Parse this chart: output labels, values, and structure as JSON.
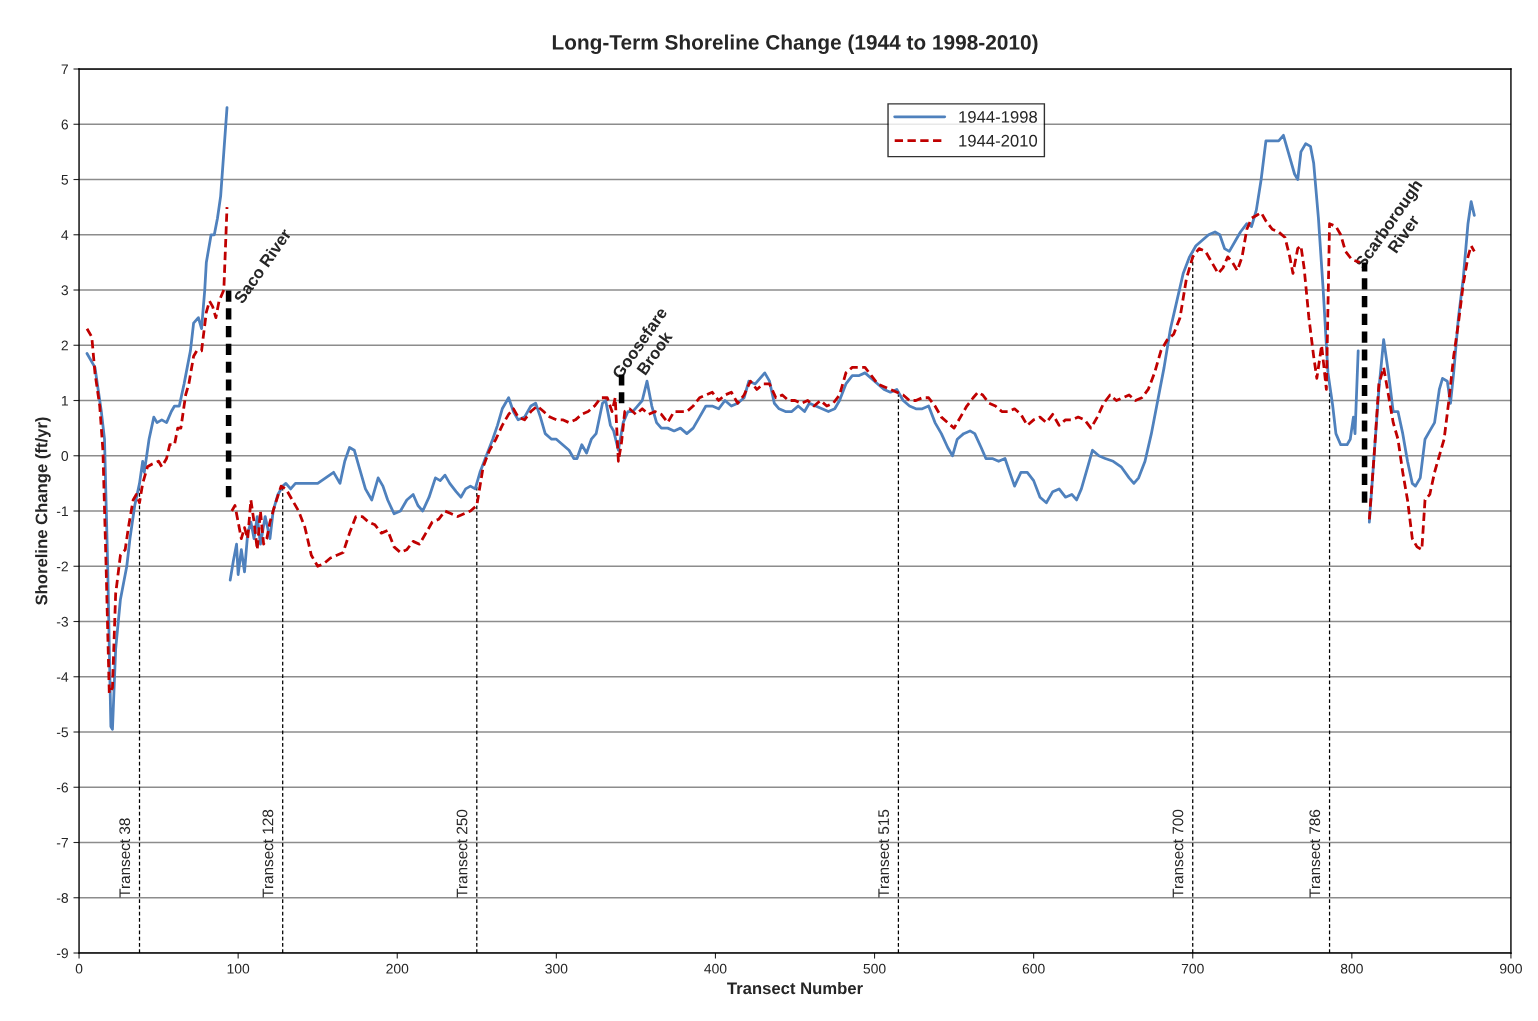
{
  "chart_data": {
    "type": "line",
    "title": "Long-Term Shoreline Change (1944 to 1998-2010)",
    "xlabel": "Transect Number",
    "ylabel": "Shoreline Change (ft/yr)",
    "xlim": [
      0,
      900
    ],
    "ylim": [
      -9,
      7
    ],
    "xticks": [
      0,
      100,
      200,
      300,
      400,
      500,
      600,
      700,
      800,
      900
    ],
    "yticks": [
      -9,
      -8,
      -7,
      -6,
      -5,
      -4,
      -3,
      -2,
      -1,
      0,
      1,
      2,
      3,
      4,
      5,
      6,
      7
    ],
    "grid": "y",
    "legend": "top right",
    "series": [
      {
        "name": "1944-1998",
        "color": "#4f81bd",
        "line_style": "solid",
        "x": [
          5,
          8,
          10,
          12,
          14,
          16,
          18,
          20,
          21,
          23,
          26,
          30,
          32,
          35,
          38,
          40,
          41,
          44,
          47,
          49,
          52,
          55,
          58,
          60,
          63,
          66,
          68,
          70,
          72,
          75,
          77,
          79,
          80,
          83,
          85,
          87,
          89,
          91,
          93,
          94,
          95,
          97,
          99,
          100,
          102,
          104,
          106,
          108,
          110,
          112,
          114,
          117,
          120,
          122,
          125,
          128,
          130,
          133,
          136,
          140,
          145,
          150,
          155,
          160,
          164,
          167,
          170,
          173,
          176,
          180,
          184,
          188,
          191,
          194,
          198,
          202,
          206,
          210,
          213,
          216,
          220,
          224,
          227,
          230,
          233,
          237,
          240,
          243,
          246,
          249,
          252,
          256,
          260,
          263,
          266,
          270,
          273,
          276,
          280,
          284,
          287,
          290,
          293,
          297,
          300,
          304,
          308,
          311,
          313,
          316,
          319,
          322,
          325,
          329,
          331,
          334,
          336,
          339,
          342,
          345,
          348,
          351,
          354,
          357,
          360,
          363,
          366,
          370,
          374,
          378,
          382,
          386,
          390,
          394,
          398,
          402,
          406,
          410,
          414,
          418,
          421,
          425,
          428,
          431,
          434,
          437,
          440,
          444,
          448,
          452,
          456,
          459,
          463,
          467,
          471,
          475,
          478,
          482,
          486,
          490,
          494,
          498,
          502,
          506,
          510,
          514,
          518,
          522,
          526,
          530,
          534,
          538,
          542,
          546,
          549,
          552,
          556,
          560,
          563,
          567,
          570,
          574,
          578,
          582,
          585,
          588,
          592,
          596,
          600,
          604,
          608,
          612,
          616,
          620,
          624,
          627,
          630,
          634,
          637,
          641,
          645,
          650,
          655,
          660,
          663,
          666,
          670,
          674,
          678,
          682,
          686,
          690,
          694,
          698,
          702,
          706,
          710,
          714,
          717,
          720,
          723,
          727,
          730,
          734,
          737,
          740,
          743,
          746,
          750,
          754,
          757,
          760,
          764,
          766,
          768,
          771,
          774,
          776,
          779,
          782,
          785,
          788,
          790,
          793,
          797,
          799,
          801,
          802,
          804,
          807,
          811,
          814,
          817,
          820,
          823,
          826,
          829,
          832,
          835,
          838,
          840,
          843,
          846,
          849,
          852,
          855,
          857,
          860,
          862,
          864,
          867,
          870,
          873,
          875,
          877
        ],
        "values": [
          1.85,
          1.7,
          1.6,
          1.2,
          0.8,
          0.3,
          -2,
          -4.9,
          -4.95,
          -3.5,
          -2.6,
          -2,
          -1.5,
          -0.9,
          -0.5,
          -0.1,
          -0.3,
          0.3,
          0.7,
          0.6,
          0.65,
          0.6,
          0.8,
          0.9,
          0.9,
          1.3,
          1.6,
          1.9,
          2.4,
          2.5,
          2.3,
          3,
          3.5,
          4,
          4,
          4.3,
          4.7,
          5.5,
          6.3,
          null,
          -2.25,
          -1.9,
          -1.6,
          -2.15,
          -1.7,
          -2.1,
          -1.4,
          -1.2,
          -1.5,
          -1.1,
          -1.6,
          -1.1,
          -1.5,
          -1.0,
          -0.7,
          -0.55,
          -0.5,
          -0.6,
          -0.5,
          -0.5,
          -0.5,
          -0.5,
          -0.4,
          -0.3,
          -0.5,
          -0.1,
          0.15,
          0.1,
          -0.2,
          -0.6,
          -0.8,
          -0.4,
          -0.55,
          -0.8,
          -1.05,
          -1.0,
          -0.8,
          -0.7,
          -0.9,
          -1.0,
          -0.75,
          -0.4,
          -0.45,
          -0.35,
          -0.5,
          -0.65,
          -0.75,
          -0.6,
          -0.55,
          -0.6,
          -0.3,
          0.0,
          0.3,
          0.55,
          0.85,
          1.05,
          0.8,
          0.65,
          0.7,
          0.9,
          0.95,
          0.7,
          0.4,
          0.3,
          0.3,
          0.2,
          0.1,
          -0.05,
          -0.05,
          0.2,
          0.05,
          0.3,
          0.4,
          0.95,
          1.0,
          0.55,
          0.45,
          0.1,
          0.6,
          0.8,
          0.8,
          0.9,
          1.0,
          1.35,
          0.9,
          0.6,
          0.5,
          0.5,
          0.45,
          0.5,
          0.4,
          0.5,
          0.7,
          0.9,
          0.9,
          0.85,
          1.0,
          0.9,
          0.95,
          1.05,
          1.35,
          1.3,
          1.4,
          1.5,
          1.35,
          0.95,
          0.85,
          0.8,
          0.8,
          0.9,
          0.8,
          0.95,
          0.9,
          0.85,
          0.8,
          0.85,
          1.0,
          1.3,
          1.45,
          1.45,
          1.5,
          1.4,
          1.3,
          1.2,
          1.15,
          1.2,
          1.0,
          0.9,
          0.85,
          0.85,
          0.9,
          0.6,
          0.4,
          0.15,
          0.0,
          0.3,
          0.4,
          0.45,
          0.4,
          0.15,
          -0.05,
          -0.05,
          -0.1,
          -0.05,
          -0.3,
          -0.55,
          -0.3,
          -0.3,
          -0.45,
          -0.75,
          -0.85,
          -0.65,
          -0.6,
          -0.75,
          -0.7,
          -0.8,
          -0.6,
          -0.2,
          0.1,
          0.0,
          -0.05,
          -0.1,
          -0.2,
          -0.4,
          -0.5,
          -0.4,
          -0.1,
          0.4,
          1.0,
          1.6,
          2.3,
          2.8,
          3.3,
          3.6,
          3.8,
          3.9,
          4.0,
          4.05,
          4.0,
          3.75,
          3.7,
          3.9,
          4.05,
          4.2,
          4.15,
          4.45,
          5.0,
          5.7,
          5.7,
          5.7,
          5.8,
          5.5,
          5.1,
          5.0,
          5.5,
          5.65,
          5.6,
          5.3,
          4.3,
          3.0,
          1.5,
          0.9,
          0.4,
          0.2,
          0.2,
          0.3,
          0.7,
          0.4,
          1.9,
          null,
          -1.2,
          0.0,
          1.2,
          2.1,
          1.5,
          0.8,
          0.8,
          0.4,
          -0.1,
          -0.5,
          -0.55,
          -0.4,
          0.3,
          0.45,
          0.6,
          1.2,
          1.4,
          1.35,
          0.95,
          1.5,
          2.5,
          3.2,
          4.2,
          4.6,
          4.35
        ]
      },
      {
        "name": "1944-2010",
        "color": "#c00000",
        "line_style": "dashed",
        "x": [
          5,
          8,
          10,
          13,
          15,
          17,
          19,
          21,
          23,
          26,
          29,
          31,
          34,
          36,
          38,
          40,
          43,
          46,
          50,
          52,
          55,
          57,
          60,
          62,
          64,
          67,
          69,
          72,
          74,
          77,
          80,
          82,
          84,
          86,
          88,
          91,
          93,
          94,
          96,
          98,
          100,
          102,
          104,
          106,
          108,
          110,
          112,
          114,
          116,
          118,
          120,
          123,
          127,
          130,
          134,
          138,
          142,
          146,
          150,
          154,
          158,
          162,
          166,
          170,
          174,
          178,
          182,
          186,
          190,
          194,
          198,
          202,
          206,
          210,
          214,
          218,
          222,
          226,
          230,
          234,
          238,
          242,
          246,
          250,
          254,
          258,
          262,
          266,
          270,
          273,
          276,
          280,
          284,
          288,
          292,
          296,
          300,
          304,
          308,
          312,
          316,
          320,
          324,
          328,
          332,
          335,
          337,
          339,
          341,
          343,
          346,
          350,
          354,
          358,
          362,
          366,
          370,
          374,
          378,
          382,
          386,
          390,
          394,
          398,
          402,
          406,
          410,
          414,
          418,
          422,
          426,
          430,
          434,
          438,
          442,
          446,
          450,
          454,
          458,
          462,
          466,
          470,
          474,
          478,
          482,
          486,
          490,
          494,
          498,
          502,
          506,
          510,
          514,
          518,
          522,
          526,
          530,
          534,
          538,
          542,
          546,
          550,
          554,
          558,
          562,
          565,
          568,
          572,
          576,
          580,
          584,
          588,
          592,
          596,
          600,
          604,
          608,
          612,
          616,
          620,
          624,
          628,
          632,
          636,
          640,
          644,
          648,
          652,
          656,
          660,
          664,
          668,
          672,
          676,
          680,
          684,
          688,
          692,
          696,
          700,
          704,
          708,
          712,
          716,
          719,
          722,
          725,
          728,
          731,
          734,
          737,
          740,
          743,
          746,
          750,
          754,
          758,
          761,
          763,
          766,
          768,
          770,
          773,
          776,
          778,
          781,
          784,
          786,
          790,
          793,
          796,
          800,
          805,
          808,
          811,
          814,
          817,
          820,
          823,
          826,
          829,
          832,
          835,
          838,
          841,
          844,
          846,
          849,
          852,
          855,
          858,
          861,
          864,
          867,
          870,
          873,
          875,
          877
        ],
        "values": [
          2.3,
          2.15,
          1.5,
          0.9,
          0.1,
          -2,
          -4.3,
          -4.2,
          -2.5,
          -1.8,
          -1.7,
          -1.3,
          -0.8,
          -0.7,
          -0.85,
          -0.5,
          -0.2,
          -0.15,
          -0.1,
          -0.2,
          -0.05,
          0.2,
          0.2,
          0.5,
          0.5,
          1.1,
          1.3,
          1.8,
          1.9,
          1.9,
          2.6,
          2.8,
          2.7,
          2.5,
          2.8,
          3,
          4.5,
          null,
          -1.0,
          -0.9,
          -1.2,
          -1.5,
          -1.3,
          -1.5,
          -0.8,
          -1.2,
          -1.7,
          -1.0,
          -1.6,
          -1.5,
          -1.2,
          -0.9,
          -0.55,
          -0.6,
          -0.8,
          -1.0,
          -1.3,
          -1.8,
          -2.0,
          -1.95,
          -1.85,
          -1.8,
          -1.75,
          -1.4,
          -1.1,
          -1.1,
          -1.2,
          -1.25,
          -1.4,
          -1.35,
          -1.65,
          -1.75,
          -1.7,
          -1.55,
          -1.6,
          -1.4,
          -1.2,
          -1.15,
          -1.0,
          -1.05,
          -1.1,
          -1.05,
          -1.0,
          -0.9,
          -0.2,
          0.1,
          0.3,
          0.55,
          0.75,
          0.85,
          0.7,
          0.65,
          0.8,
          0.9,
          0.8,
          0.7,
          0.65,
          0.65,
          0.6,
          0.65,
          0.75,
          0.8,
          0.9,
          1.05,
          1.05,
          0.8,
          1.05,
          -0.1,
          0.25,
          0.8,
          0.85,
          0.75,
          0.85,
          0.75,
          0.8,
          0.75,
          0.6,
          0.8,
          0.8,
          0.8,
          0.9,
          1.05,
          1.1,
          1.15,
          1.0,
          1.1,
          1.15,
          0.95,
          1.1,
          1.35,
          1.2,
          1.3,
          1.3,
          1.05,
          1.1,
          1.0,
          1.0,
          0.95,
          1.0,
          0.9,
          1.0,
          0.9,
          0.95,
          1.1,
          1.5,
          1.6,
          1.6,
          1.6,
          1.45,
          1.3,
          1.25,
          1.2,
          1.15,
          1.1,
          1.0,
          1.0,
          1.05,
          1.05,
          0.9,
          0.7,
          0.6,
          0.5,
          0.7,
          0.9,
          1.05,
          1.15,
          1.1,
          0.95,
          0.9,
          0.8,
          0.8,
          0.85,
          0.75,
          0.55,
          0.65,
          0.7,
          0.6,
          0.75,
          0.55,
          0.65,
          0.65,
          0.7,
          0.65,
          0.5,
          0.7,
          0.95,
          1.1,
          1.0,
          1.05,
          1.1,
          1.0,
          1.05,
          1.2,
          1.5,
          1.9,
          2.1,
          2.2,
          2.5,
          3.2,
          3.6,
          3.75,
          3.7,
          3.5,
          3.3,
          3.4,
          3.6,
          3.5,
          3.35,
          3.6,
          4.1,
          4.3,
          4.35,
          4.4,
          4.25,
          4.1,
          4.05,
          3.95,
          3.6,
          3.3,
          3.75,
          3.8,
          3.4,
          2.5,
          1.8,
          1.4,
          2.0,
          1.2,
          4.2,
          4.15,
          4.0,
          3.7,
          3.55,
          3.5,
          null,
          -1.15,
          0.0,
          1.3,
          1.6,
          1.1,
          0.6,
          0.3,
          -0.3,
          -0.8,
          -1.5,
          -1.65,
          -1.7,
          -0.8,
          -0.7,
          -0.3,
          0.0,
          0.3,
          1.0,
          1.8,
          2.4,
          3.1,
          3.6,
          3.8,
          3.7
        ]
      },
      {
        "color": "#000000",
        "line_style": "dashed",
        "x": [
          94,
          94
        ],
        "values": [
          -0.75,
          3.05
        ]
      },
      {
        "color": "#000000",
        "line_style": "dashed",
        "x": [
          341,
          341
        ],
        "values": [
          0.95,
          1.5
        ]
      },
      {
        "color": "#000000",
        "line_style": "dashed",
        "x": [
          808,
          808
        ],
        "values": [
          -0.85,
          3.5
        ]
      }
    ],
    "ref_lines": [
      {
        "axis": "x",
        "value": 38,
        "label": "Transect 38",
        "color": "#000000",
        "line_style": "dashed"
      },
      {
        "axis": "x",
        "value": 128,
        "label": "Transect 128",
        "color": "#000000",
        "line_style": "dashed"
      },
      {
        "axis": "x",
        "value": 250,
        "label": "Transect 250",
        "color": "#000000",
        "line_style": "dashed"
      },
      {
        "axis": "x",
        "value": 515,
        "label": "Transect 515",
        "color": "#000000",
        "line_style": "dashed"
      },
      {
        "axis": "x",
        "value": 700,
        "label": "Transect 700",
        "color": "#000000",
        "line_style": "dashed"
      },
      {
        "axis": "x",
        "value": 786,
        "label": "Transect 786",
        "color": "#000000",
        "line_style": "dashed"
      }
    ],
    "annotations": [
      {
        "text": "Saco River",
        "x": 94,
        "y": 3.05
      },
      {
        "text": "Goosefare\nBrook",
        "x": 341,
        "y": 1.5
      },
      {
        "text": "Scarborough\nRiver",
        "x": 808,
        "y": 3.5
      }
    ]
  }
}
